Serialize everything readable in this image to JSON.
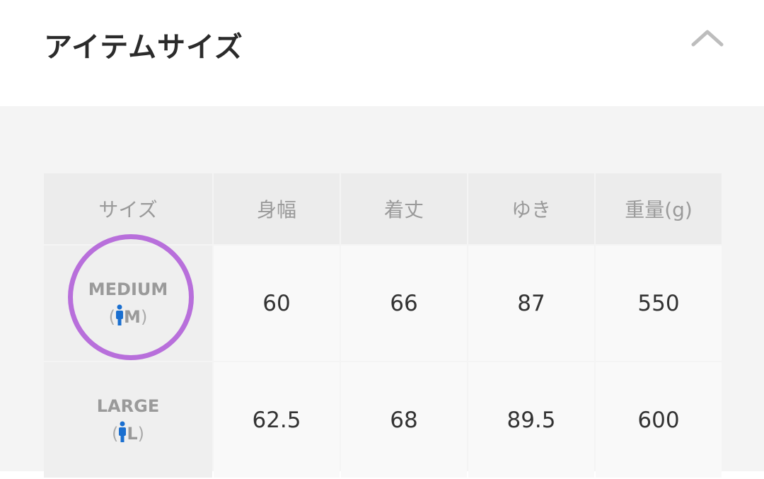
{
  "header": {
    "title": "アイテムサイズ",
    "collapse_icon": "chevron-up-icon"
  },
  "table": {
    "columns": [
      "サイズ",
      "身幅",
      "着丈",
      "ゆき",
      "重量(g)"
    ],
    "rows": [
      {
        "size": "MEDIUM",
        "code": "M",
        "values": [
          "60",
          "66",
          "87",
          "550"
        ]
      },
      {
        "size": "LARGE",
        "code": "L",
        "values": [
          "62.5",
          "68",
          "89.5",
          "600"
        ]
      }
    ]
  },
  "colors": {
    "highlight_circle": "#b86fdb",
    "person_icon": "#1a6fd0"
  }
}
